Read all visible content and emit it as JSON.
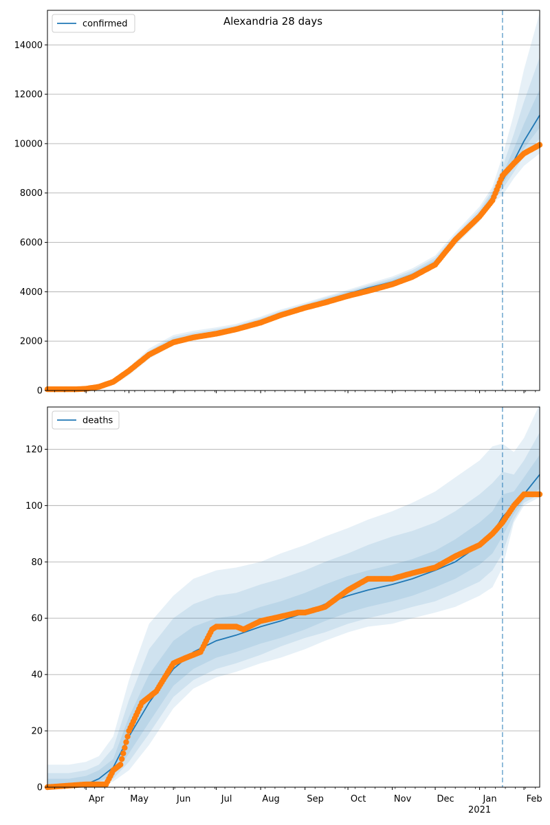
{
  "figure_title": "Alexandria 28 days",
  "colors": {
    "model": "#1f77b4",
    "observed": "#ff7f0e",
    "band": "#1f77b4",
    "forecast_line": "#1f77b4",
    "grid": "#b0b0b0"
  },
  "chart_data": [
    {
      "type": "line",
      "panel": "top",
      "title": "Alexandria 28 days",
      "legend": {
        "labels": [
          "confirmed"
        ],
        "placement": "top-left"
      },
      "xlim": [
        "2020-03-05",
        "2021-02-12"
      ],
      "ylim": [
        0,
        15400
      ],
      "yticks": [
        0,
        2000,
        4000,
        6000,
        8000,
        10000,
        12000,
        14000
      ],
      "x_tick_labels": [],
      "grid": "y",
      "forecast_start": "2021-01-17",
      "model_x": [
        "2020-03-05",
        "2020-03-20",
        "2020-04-01",
        "2020-04-10",
        "2020-04-20",
        "2020-05-01",
        "2020-05-15",
        "2020-06-01",
        "2020-06-15",
        "2020-07-01",
        "2020-07-15",
        "2020-08-01",
        "2020-08-15",
        "2020-09-01",
        "2020-09-15",
        "2020-10-01",
        "2020-10-15",
        "2020-11-01",
        "2020-11-15",
        "2020-12-01",
        "2020-12-15",
        "2021-01-01",
        "2021-01-10",
        "2021-01-17",
        "2021-01-25",
        "2021-02-01",
        "2021-02-12"
      ],
      "model": [
        30,
        30,
        40,
        80,
        280,
        750,
        1450,
        2000,
        2170,
        2330,
        2500,
        2800,
        3100,
        3400,
        3650,
        3920,
        4150,
        4400,
        4700,
        5200,
        6100,
        7100,
        7850,
        8500,
        9300,
        10100,
        11150
      ],
      "bands": [
        {
          "name": "95",
          "lower": [
            0,
            0,
            10,
            50,
            220,
            620,
            1280,
            1850,
            2030,
            2200,
            2390,
            2700,
            3000,
            3300,
            3540,
            3790,
            4010,
            4250,
            4530,
            5010,
            5880,
            6850,
            7580,
            7900,
            8600,
            9100,
            9600
          ],
          "upper": [
            80,
            90,
            120,
            150,
            380,
            940,
            1700,
            2250,
            2420,
            2560,
            2700,
            2990,
            3280,
            3560,
            3810,
            4080,
            4330,
            4620,
            4950,
            5470,
            6400,
            7450,
            8250,
            9500,
            11200,
            13000,
            15300
          ]
        },
        {
          "name": "80",
          "lower": [
            0,
            10,
            20,
            60,
            240,
            660,
            1330,
            1900,
            2080,
            2240,
            2420,
            2730,
            3040,
            3340,
            3580,
            3840,
            4060,
            4310,
            4600,
            5080,
            5960,
            6920,
            7670,
            8150,
            8850,
            9500,
            10200
          ],
          "upper": [
            60,
            70,
            90,
            120,
            340,
            870,
            1610,
            2170,
            2340,
            2490,
            2640,
            2930,
            3220,
            3500,
            3760,
            4020,
            4270,
            4550,
            4870,
            5380,
            6300,
            7330,
            8110,
            9050,
            10400,
            11700,
            13500
          ]
        },
        {
          "name": "50",
          "lower": [
            10,
            20,
            30,
            70,
            260,
            700,
            1390,
            1950,
            2120,
            2280,
            2460,
            2770,
            3070,
            3370,
            3620,
            3880,
            4100,
            4350,
            4650,
            5140,
            6030,
            7010,
            7760,
            8330,
            9080,
            9800,
            10650
          ],
          "upper": [
            50,
            50,
            60,
            100,
            310,
            810,
            1530,
            2090,
            2250,
            2420,
            2570,
            2870,
            3160,
            3450,
            3710,
            3970,
            4220,
            4480,
            4780,
            5300,
            6210,
            7230,
            8000,
            8750,
            9800,
            10800,
            12200
          ]
        }
      ],
      "observed_x": [
        "2020-03-05",
        "2020-03-25",
        "2020-04-01",
        "2020-04-10",
        "2020-04-20",
        "2020-05-01",
        "2020-05-15",
        "2020-06-01",
        "2020-06-15",
        "2020-07-01",
        "2020-07-15",
        "2020-08-01",
        "2020-08-15",
        "2020-09-01",
        "2020-09-15",
        "2020-10-01",
        "2020-10-15",
        "2020-11-01",
        "2020-11-15",
        "2020-12-01",
        "2020-12-15",
        "2021-01-01",
        "2021-01-10",
        "2021-01-17",
        "2021-01-25",
        "2021-02-01",
        "2021-02-12"
      ],
      "observed": [
        50,
        50,
        70,
        150,
        350,
        800,
        1450,
        1950,
        2150,
        2300,
        2480,
        2750,
        3050,
        3350,
        3560,
        3830,
        4030,
        4300,
        4600,
        5100,
        6100,
        7050,
        7700,
        8700,
        9200,
        9600,
        9950
      ]
    },
    {
      "type": "line",
      "panel": "bottom",
      "legend": {
        "labels": [
          "deaths"
        ],
        "placement": "top-left"
      },
      "xlim": [
        "2020-03-05",
        "2021-02-12"
      ],
      "ylim": [
        0,
        135
      ],
      "yticks": [
        0,
        20,
        40,
        60,
        80,
        100,
        120
      ],
      "x_tick_labels": [
        {
          "date": "2020-04-01",
          "label": "Apr"
        },
        {
          "date": "2020-05-01",
          "label": "May"
        },
        {
          "date": "2020-06-01",
          "label": "Jun"
        },
        {
          "date": "2020-07-01",
          "label": "Jul"
        },
        {
          "date": "2020-08-01",
          "label": "Aug"
        },
        {
          "date": "2020-09-01",
          "label": "Sep"
        },
        {
          "date": "2020-10-01",
          "label": "Oct"
        },
        {
          "date": "2020-11-01",
          "label": "Nov"
        },
        {
          "date": "2020-12-01",
          "label": "Dec"
        },
        {
          "date": "2021-01-01",
          "label": "Jan",
          "sublabel": "2021"
        },
        {
          "date": "2021-02-01",
          "label": "Feb"
        }
      ],
      "grid": "y",
      "forecast_start": "2021-01-17",
      "model_x": [
        "2020-03-05",
        "2020-03-20",
        "2020-04-01",
        "2020-04-10",
        "2020-04-20",
        "2020-05-01",
        "2020-05-15",
        "2020-06-01",
        "2020-06-15",
        "2020-07-01",
        "2020-07-15",
        "2020-08-01",
        "2020-08-15",
        "2020-09-01",
        "2020-09-15",
        "2020-10-01",
        "2020-10-15",
        "2020-11-01",
        "2020-11-15",
        "2020-12-01",
        "2020-12-15",
        "2021-01-01",
        "2021-01-10",
        "2021-01-17",
        "2021-01-25",
        "2021-02-01",
        "2021-02-12"
      ],
      "model": [
        0,
        0,
        1,
        3,
        7,
        18,
        30,
        42,
        48,
        52,
        54,
        57,
        59,
        62,
        65,
        68,
        70,
        72,
        74,
        77,
        80,
        86,
        90,
        96,
        100,
        104,
        111
      ],
      "bands": [
        {
          "name": "95",
          "lower": [
            0,
            0,
            0,
            0,
            2,
            6,
            15,
            28,
            35,
            39,
            41,
            44,
            46,
            49,
            52,
            55,
            57,
            58,
            60,
            62,
            64,
            68,
            71,
            78,
            94,
            100,
            103
          ],
          "upper": [
            8,
            8,
            9,
            11,
            18,
            38,
            58,
            68,
            74,
            77,
            78,
            80,
            83,
            86,
            89,
            92,
            95,
            98,
            101,
            105,
            110,
            116,
            121,
            122,
            119,
            124,
            136
          ]
        },
        {
          "name": "80",
          "lower": [
            0,
            0,
            0,
            1,
            3,
            9,
            19,
            32,
            38,
            42,
            44,
            47,
            50,
            53,
            55,
            58,
            60,
            62,
            64,
            66,
            69,
            73,
            77,
            83,
            95,
            101,
            104
          ],
          "upper": [
            5,
            5,
            6,
            8,
            14,
            31,
            49,
            60,
            65,
            68,
            69,
            72,
            74,
            77,
            80,
            83,
            86,
            89,
            91,
            94,
            98,
            104,
            108,
            112,
            111,
            116,
            126
          ]
        },
        {
          "name": "50",
          "lower": [
            0,
            0,
            0,
            2,
            4,
            12,
            23,
            36,
            42,
            46,
            48,
            51,
            53,
            56,
            59,
            62,
            64,
            66,
            68,
            71,
            74,
            79,
            83,
            89,
            97,
            102,
            106
          ],
          "upper": [
            3,
            3,
            4,
            6,
            10,
            25,
            40,
            52,
            57,
            60,
            61,
            64,
            66,
            69,
            72,
            75,
            77,
            79,
            81,
            84,
            88,
            94,
            98,
            104,
            105,
            110,
            118
          ]
        }
      ],
      "observed_x": [
        "2020-03-05",
        "2020-04-01",
        "2020-04-15",
        "2020-04-20",
        "2020-04-25",
        "2020-05-01",
        "2020-05-10",
        "2020-05-20",
        "2020-06-01",
        "2020-06-10",
        "2020-06-20",
        "2020-06-28",
        "2020-07-01",
        "2020-07-15",
        "2020-07-20",
        "2020-08-01",
        "2020-08-10",
        "2020-08-27",
        "2020-09-01",
        "2020-09-15",
        "2020-10-01",
        "2020-10-15",
        "2020-11-01",
        "2020-11-15",
        "2020-12-01",
        "2020-12-15",
        "2021-01-01",
        "2021-01-10",
        "2021-01-17",
        "2021-01-25",
        "2021-02-01",
        "2021-02-12"
      ],
      "observed": [
        0,
        1,
        1,
        6,
        8,
        20,
        30,
        34,
        44,
        46,
        48,
        56,
        57,
        57,
        56,
        59,
        60,
        62,
        62,
        64,
        70,
        74,
        74,
        76,
        78,
        82,
        86,
        90,
        94,
        100,
        104,
        104
      ]
    }
  ]
}
